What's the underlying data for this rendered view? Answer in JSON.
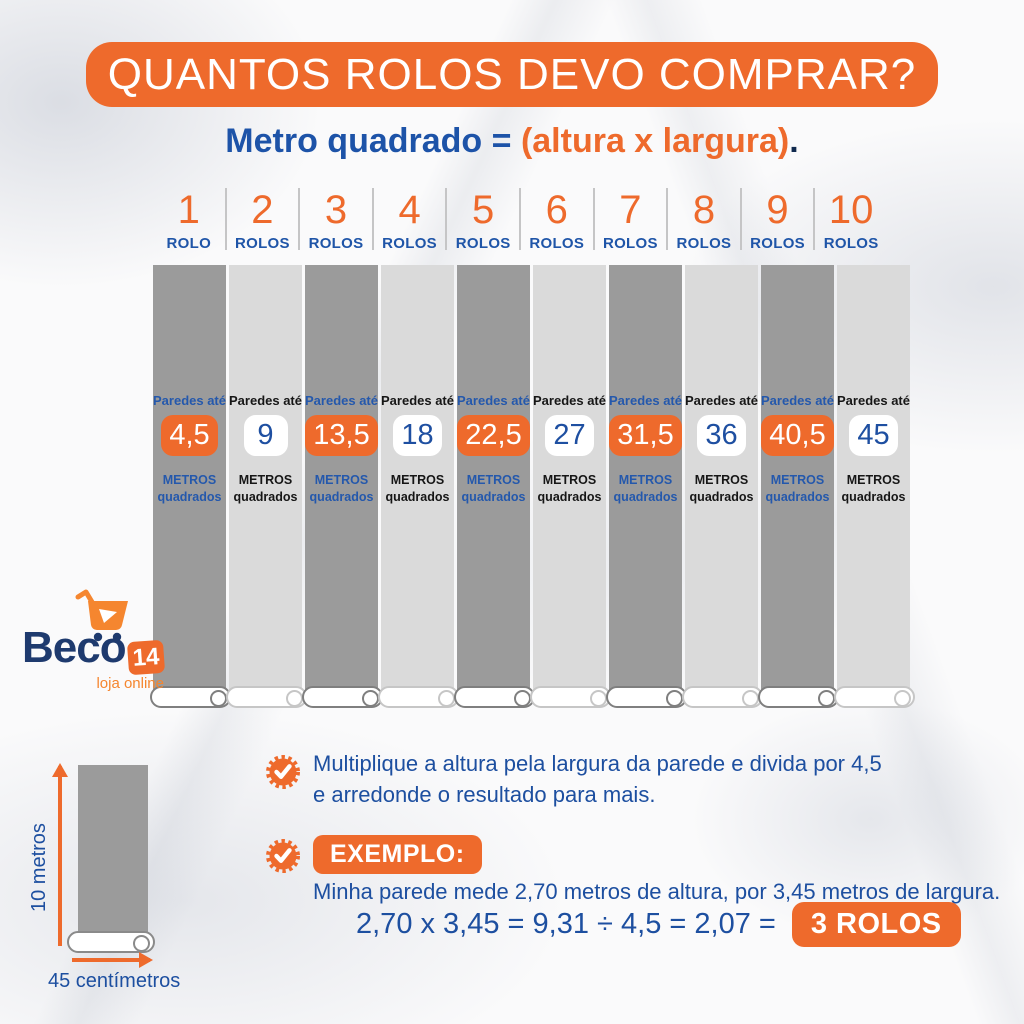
{
  "colors": {
    "orange": "#ee6a2c",
    "blue": "#1d53a8",
    "navy": "#1e3a6e",
    "dark_gray": "#9b9b9b",
    "light_gray": "#dadada"
  },
  "header": {
    "title": "QUANTOS ROLOS DEVO COMPRAR?"
  },
  "subtitle": {
    "part1": "Metro quadrado = ",
    "part2": "(altura x largura)",
    "part3": "."
  },
  "columns": [
    {
      "number": "1",
      "unit": "ROLO",
      "wall_label": "Paredes até",
      "value": "4,5",
      "area_line1": "METROS",
      "area_line2": "quadrados",
      "theme": "dark"
    },
    {
      "number": "2",
      "unit": "ROLOS",
      "wall_label": "Paredes até",
      "value": "9",
      "area_line1": "METROS",
      "area_line2": "quadrados",
      "theme": "light"
    },
    {
      "number": "3",
      "unit": "ROLOS",
      "wall_label": "Paredes até",
      "value": "13,5",
      "area_line1": "METROS",
      "area_line2": "quadrados",
      "theme": "dark"
    },
    {
      "number": "4",
      "unit": "ROLOS",
      "wall_label": "Paredes até",
      "value": "18",
      "area_line1": "METROS",
      "area_line2": "quadrados",
      "theme": "light"
    },
    {
      "number": "5",
      "unit": "ROLOS",
      "wall_label": "Paredes até",
      "value": "22,5",
      "area_line1": "METROS",
      "area_line2": "quadrados",
      "theme": "dark"
    },
    {
      "number": "6",
      "unit": "ROLOS",
      "wall_label": "Paredes até",
      "value": "27",
      "area_line1": "METROS",
      "area_line2": "quadrados",
      "theme": "light"
    },
    {
      "number": "7",
      "unit": "ROLOS",
      "wall_label": "Paredes até",
      "value": "31,5",
      "area_line1": "METROS",
      "area_line2": "quadrados",
      "theme": "dark"
    },
    {
      "number": "8",
      "unit": "ROLOS",
      "wall_label": "Paredes até",
      "value": "36",
      "area_line1": "METROS",
      "area_line2": "quadrados",
      "theme": "light"
    },
    {
      "number": "9",
      "unit": "ROLOS",
      "wall_label": "Paredes até",
      "value": "40,5",
      "area_line1": "METROS",
      "area_line2": "quadrados",
      "theme": "dark"
    },
    {
      "number": "10",
      "unit": "ROLOS",
      "wall_label": "Paredes até",
      "value": "45",
      "area_line1": "METROS",
      "area_line2": "quadrados",
      "theme": "light"
    }
  ],
  "logo": {
    "brand": "Beco",
    "badge": "14",
    "tagline": "loja online",
    "cart_icon": "shopping-cart"
  },
  "tip": {
    "line1": "Multiplique a altura pela largura da parede e divida por 4,5",
    "line2": "e arredonde o resultado para mais."
  },
  "example": {
    "label": "EXEMPLO:",
    "description": "Minha parede mede 2,70 metros de altura, por 3,45 metros de largura.",
    "equation": "2,70 x 3,45 = 9,31 ÷ 4,5 = 2,07 =",
    "result": "3 ROLOS"
  },
  "roll_diagram": {
    "height_label": "10 metros",
    "width_label": "45 centímetros"
  }
}
